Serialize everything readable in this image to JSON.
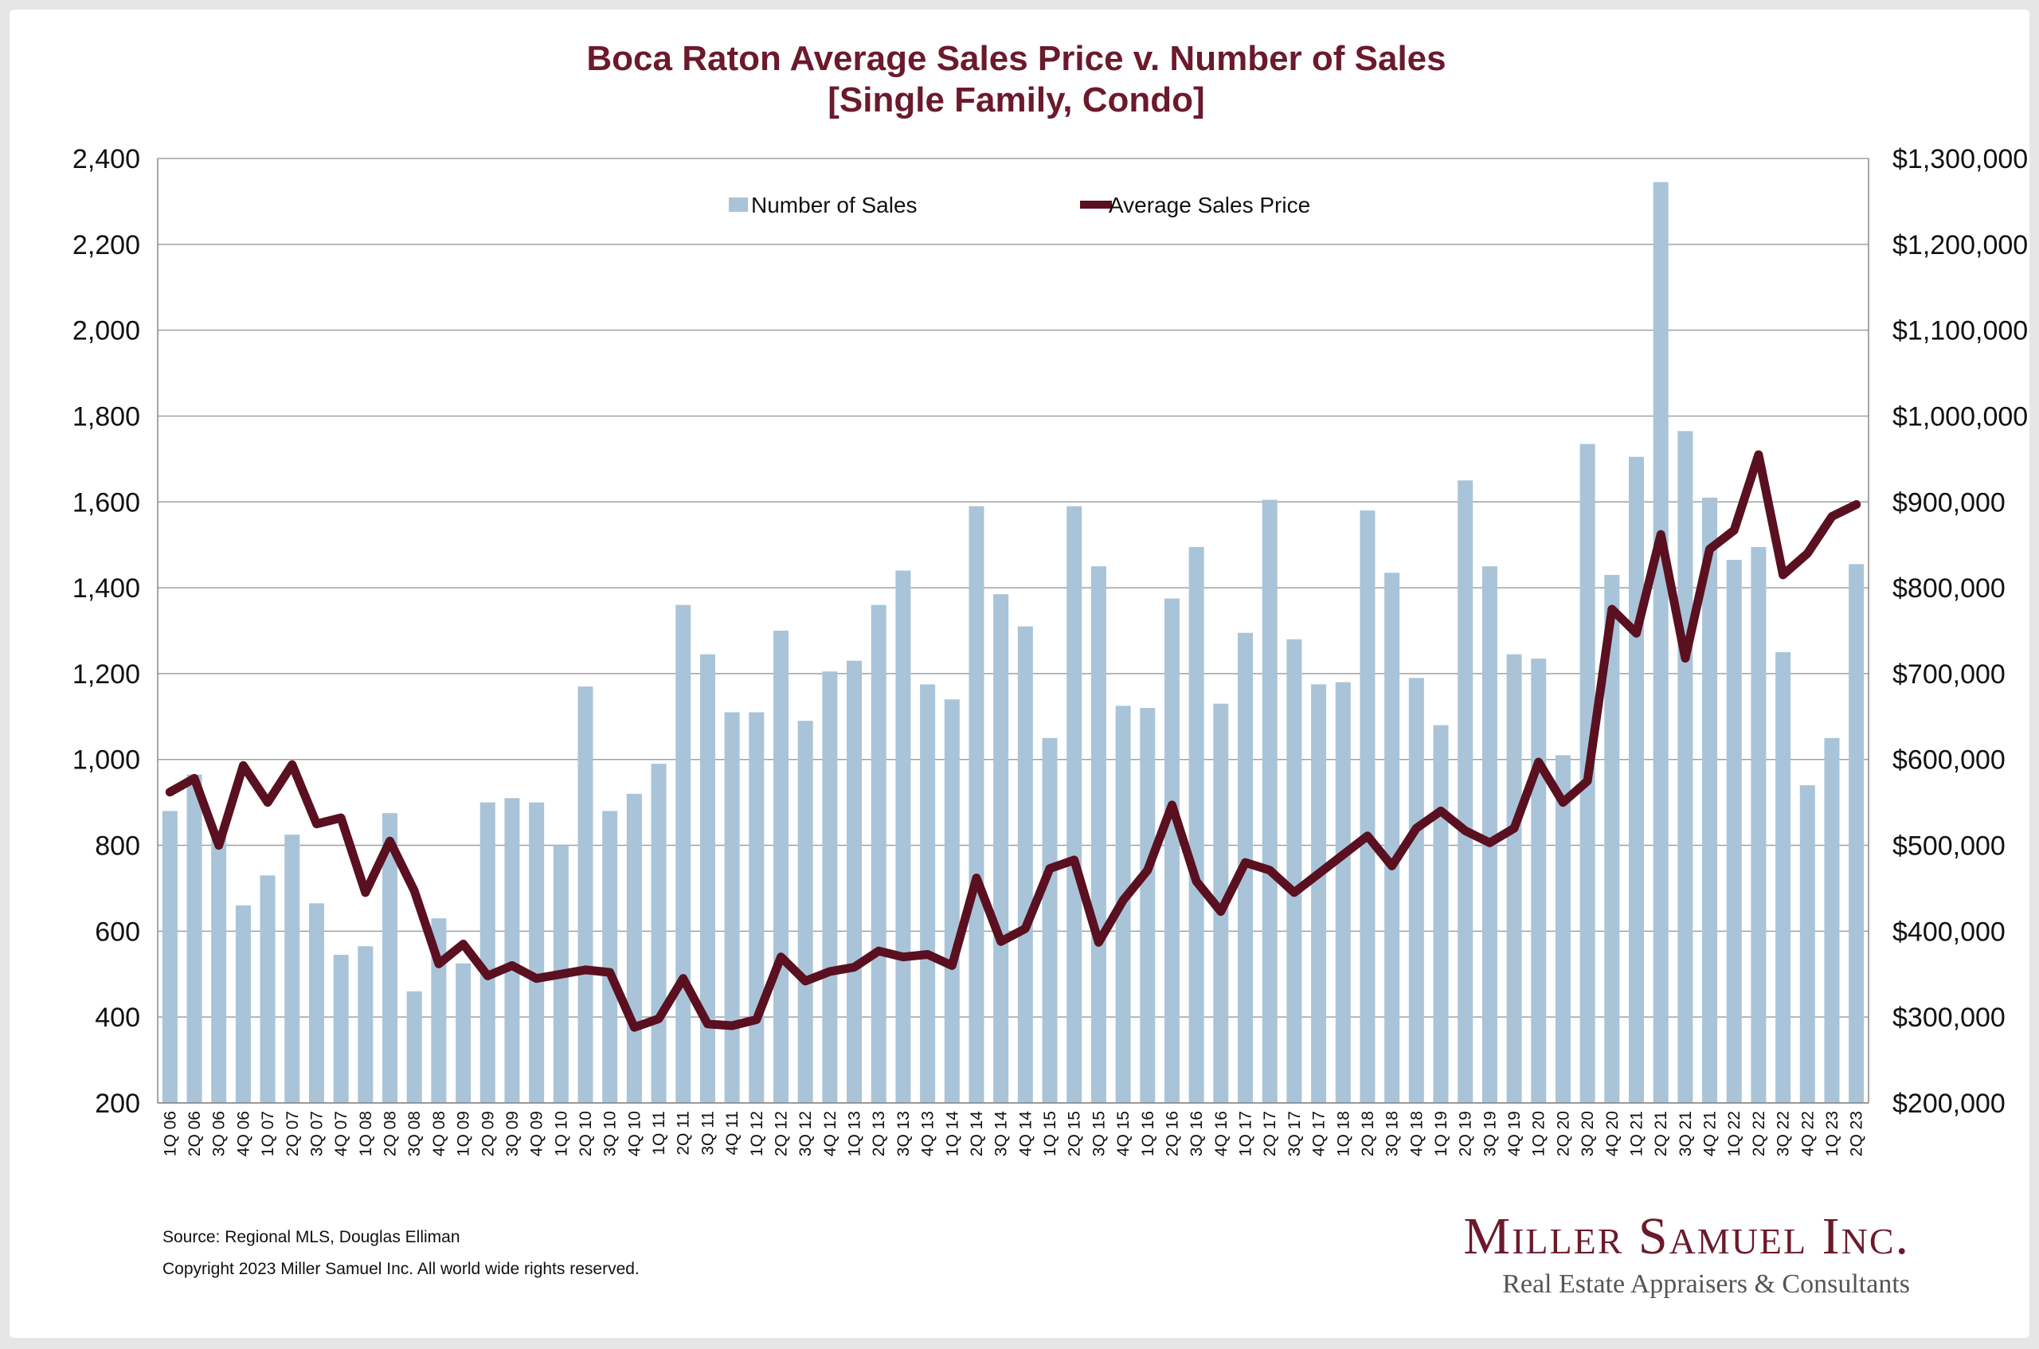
{
  "colors": {
    "bar": "#a9c4d8",
    "line": "#5a1020",
    "title": "#6b1a2b",
    "grid": "#a0a0a0"
  },
  "chart_data": {
    "type": "bar",
    "title": "Boca Raton Average Sales Price v. Number of Sales",
    "subtitle": "[Single Family, Condo]",
    "categories": [
      "1Q 06",
      "2Q 06",
      "3Q 06",
      "4Q 06",
      "1Q 07",
      "2Q 07",
      "3Q 07",
      "4Q 07",
      "1Q 08",
      "2Q 08",
      "3Q 08",
      "4Q 08",
      "1Q 09",
      "2Q 09",
      "3Q 09",
      "4Q 09",
      "1Q 10",
      "2Q 10",
      "3Q 10",
      "4Q 10",
      "1Q 11",
      "2Q 11",
      "3Q 11",
      "4Q 11",
      "1Q 12",
      "2Q 12",
      "3Q 12",
      "4Q 12",
      "1Q 13",
      "2Q 13",
      "3Q 13",
      "4Q 13",
      "1Q 14",
      "2Q 14",
      "3Q 14",
      "4Q 14",
      "1Q 15",
      "2Q 15",
      "3Q 15",
      "4Q 15",
      "1Q 16",
      "2Q 16",
      "3Q 16",
      "4Q 16",
      "1Q 17",
      "2Q 17",
      "3Q 17",
      "4Q 17",
      "1Q 18",
      "2Q 18",
      "3Q 18",
      "4Q 18",
      "1Q 19",
      "2Q 19",
      "3Q 19",
      "4Q 19",
      "1Q 20",
      "2Q 20",
      "3Q 20",
      "4Q 20",
      "1Q 21",
      "2Q 21",
      "3Q 21",
      "4Q 21",
      "1Q 22",
      "2Q 22",
      "3Q 22",
      "4Q 22",
      "1Q 23",
      "2Q 23"
    ],
    "series": [
      {
        "name": "Number of Sales",
        "kind": "bar",
        "axis": "left",
        "values": [
          880,
          965,
          820,
          660,
          730,
          825,
          665,
          545,
          565,
          875,
          460,
          630,
          525,
          900,
          910,
          900,
          800,
          1170,
          880,
          920,
          990,
          1360,
          1245,
          1110,
          1110,
          1300,
          1090,
          1205,
          1230,
          1360,
          1440,
          1175,
          1140,
          1590,
          1385,
          1310,
          1050,
          1590,
          1450,
          1125,
          1120,
          1375,
          1495,
          1130,
          1295,
          1605,
          1280,
          1175,
          1180,
          1580,
          1435,
          1190,
          1080,
          1650,
          1450,
          1245,
          1235,
          1010,
          1735,
          1430,
          1705,
          2345,
          1765,
          1610,
          1465,
          1495,
          1250,
          940,
          1050,
          1455
        ]
      },
      {
        "name": "Average Sales Price",
        "kind": "line",
        "axis": "right",
        "values": [
          562000,
          578000,
          500000,
          593000,
          550000,
          594000,
          525000,
          532000,
          445000,
          505000,
          447000,
          362000,
          385000,
          348000,
          360000,
          345000,
          350000,
          355000,
          352000,
          288000,
          298000,
          345000,
          292000,
          290000,
          297000,
          370000,
          342000,
          353000,
          358000,
          377000,
          370000,
          373000,
          360000,
          462000,
          388000,
          403000,
          473000,
          483000,
          387000,
          436000,
          471000,
          547000,
          458000,
          423000,
          480000,
          471000,
          445000,
          467000,
          489000,
          511000,
          476000,
          520000,
          540000,
          517000,
          503000,
          520000,
          597000,
          550000,
          575000,
          775000,
          747000,
          862000,
          718000,
          845000,
          867000,
          955000,
          815000,
          840000,
          883000,
          897000
        ]
      }
    ],
    "y_left": {
      "ylim": [
        200,
        2400
      ],
      "ticks": [
        "200",
        "400",
        "600",
        "800",
        "1,000",
        "1,200",
        "1,400",
        "1,600",
        "1,800",
        "2,000",
        "2,200",
        "2,400"
      ]
    },
    "y_right": {
      "ylim": [
        200000,
        1300000
      ],
      "ticks": [
        "$200,000",
        "$300,000",
        "$400,000",
        "$500,000",
        "$600,000",
        "$700,000",
        "$800,000",
        "$900,000",
        "$1,000,000",
        "$1,100,000",
        "$1,200,000",
        "$1,300,000"
      ]
    },
    "grid": true,
    "legend_position": "top-center"
  },
  "footer": {
    "source": "Source: Regional MLS, Douglas Elliman",
    "copyright": "Copyright 2023 Miller Samuel Inc.  All world wide rights reserved."
  },
  "brand": {
    "name": "Miller Samuel Inc.",
    "tagline": "Real Estate Appraisers & Consultants"
  }
}
